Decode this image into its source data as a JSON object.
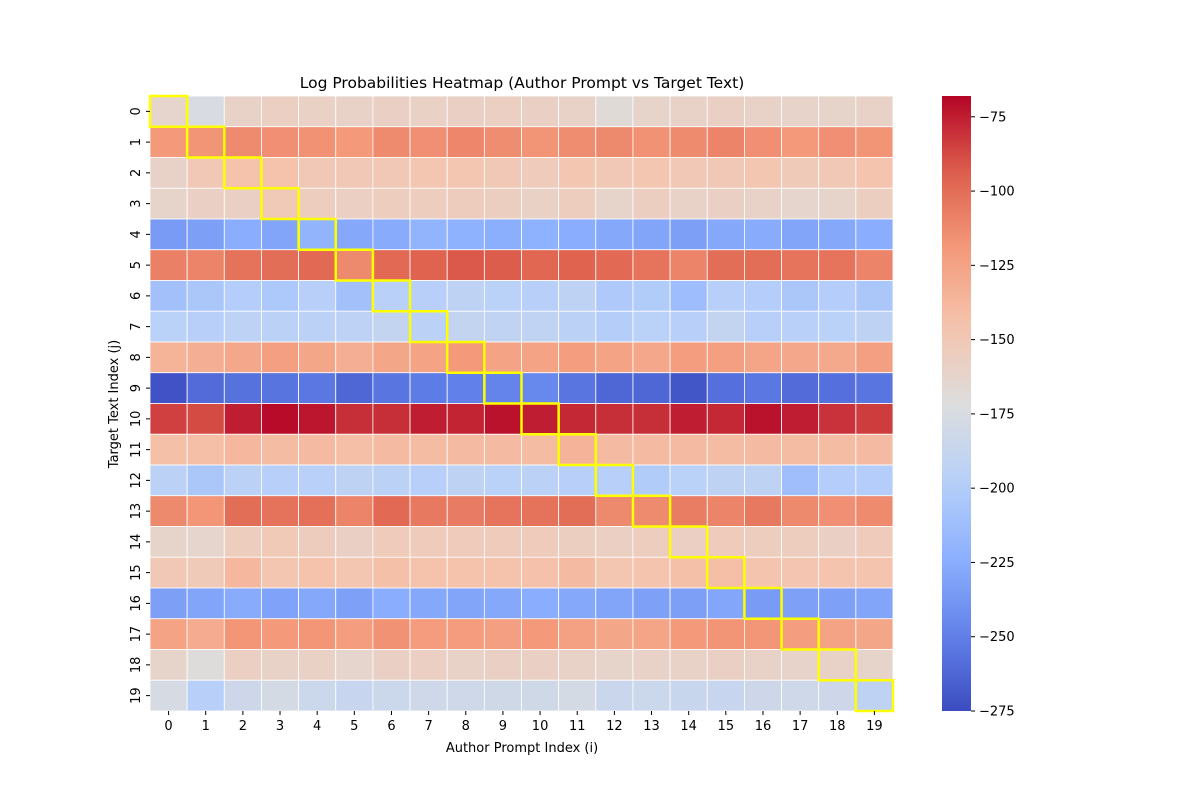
{
  "chart_data": {
    "type": "heatmap",
    "title": "Log Probabilities Heatmap (Author Prompt vs Target Text)",
    "xlabel": "Author Prompt Index (i)",
    "ylabel": "Target Text Index (j)",
    "x_tick_labels": [
      "0",
      "1",
      "2",
      "3",
      "4",
      "5",
      "6",
      "7",
      "8",
      "9",
      "10",
      "11",
      "12",
      "13",
      "14",
      "15",
      "16",
      "17",
      "18",
      "19"
    ],
    "y_tick_labels": [
      "0",
      "1",
      "2",
      "3",
      "4",
      "5",
      "6",
      "7",
      "8",
      "9",
      "10",
      "11",
      "12",
      "13",
      "14",
      "15",
      "16",
      "17",
      "18",
      "19"
    ],
    "colormap": "coolwarm",
    "colorbar": {
      "vmin": -275,
      "vmax": -68,
      "ticks": [
        -75,
        -100,
        -125,
        -150,
        -175,
        -200,
        -225,
        -250,
        -275
      ],
      "tick_labels": [
        "−75",
        "−100",
        "−125",
        "−150",
        "−175",
        "−200",
        "−225",
        "−250",
        "−275"
      ]
    },
    "highlight": {
      "description_color": "#ffff00",
      "cells": "diagonal i=j"
    },
    "values": [
      [
        -163,
        -175,
        -160,
        -157,
        -159,
        -160,
        -158,
        -159,
        -158,
        -157,
        -158,
        -160,
        -168,
        -162,
        -160,
        -158,
        -160,
        -161,
        -162,
        -160
      ],
      [
        -120,
        -117,
        -113,
        -115,
        -116,
        -120,
        -113,
        -115,
        -111,
        -114,
        -117,
        -114,
        -112,
        -116,
        -113,
        -110,
        -115,
        -120,
        -115,
        -117
      ],
      [
        -160,
        -150,
        -145,
        -145,
        -150,
        -150,
        -150,
        -148,
        -148,
        -150,
        -153,
        -148,
        -150,
        -148,
        -150,
        -150,
        -148,
        -152,
        -150,
        -146
      ],
      [
        -162,
        -158,
        -158,
        -151,
        -155,
        -157,
        -155,
        -155,
        -154,
        -156,
        -159,
        -155,
        -162,
        -156,
        -160,
        -158,
        -160,
        -163,
        -162,
        -156
      ],
      [
        -235,
        -233,
        -225,
        -230,
        -220,
        -228,
        -226,
        -220,
        -222,
        -224,
        -222,
        -225,
        -228,
        -230,
        -233,
        -228,
        -226,
        -230,
        -228,
        -225
      ],
      [
        -108,
        -110,
        -102,
        -100,
        -98,
        -112,
        -98,
        -95,
        -92,
        -93,
        -97,
        -95,
        -98,
        -103,
        -110,
        -100,
        -100,
        -103,
        -103,
        -110
      ],
      [
        -210,
        -205,
        -200,
        -204,
        -198,
        -210,
        -197,
        -198,
        -193,
        -196,
        -198,
        -193,
        -203,
        -201,
        -213,
        -198,
        -200,
        -205,
        -200,
        -205
      ],
      [
        -196,
        -198,
        -194,
        -195,
        -195,
        -194,
        -190,
        -195,
        -190,
        -192,
        -192,
        -195,
        -199,
        -196,
        -198,
        -190,
        -198,
        -197,
        -196,
        -193
      ],
      [
        -135,
        -132,
        -128,
        -123,
        -127,
        -132,
        -127,
        -125,
        -120,
        -125,
        -125,
        -122,
        -125,
        -128,
        -122,
        -123,
        -126,
        -128,
        -129,
        -123
      ],
      [
        -272,
        -260,
        -257,
        -256,
        -254,
        -262,
        -255,
        -252,
        -250,
        -248,
        -246,
        -255,
        -262,
        -262,
        -270,
        -258,
        -254,
        -260,
        -258,
        -255
      ],
      [
        -85,
        -88,
        -75,
        -70,
        -73,
        -80,
        -80,
        -75,
        -77,
        -72,
        -75,
        -78,
        -80,
        -80,
        -75,
        -78,
        -72,
        -75,
        -81,
        -84
      ],
      [
        -143,
        -142,
        -138,
        -141,
        -140,
        -142,
        -140,
        -141,
        -140,
        -140,
        -141,
        -136,
        -140,
        -140,
        -140,
        -141,
        -140,
        -141,
        -141,
        -140
      ],
      [
        -195,
        -205,
        -195,
        -198,
        -197,
        -193,
        -195,
        -198,
        -193,
        -196,
        -195,
        -198,
        -198,
        -201,
        -196,
        -193,
        -193,
        -212,
        -200,
        -200
      ],
      [
        -112,
        -118,
        -100,
        -102,
        -101,
        -110,
        -98,
        -105,
        -106,
        -103,
        -102,
        -100,
        -112,
        -113,
        -107,
        -110,
        -105,
        -112,
        -115,
        -113
      ],
      [
        -162,
        -163,
        -155,
        -151,
        -154,
        -158,
        -153,
        -153,
        -153,
        -153,
        -153,
        -156,
        -157,
        -155,
        -157,
        -153,
        -155,
        -155,
        -158,
        -153
      ],
      [
        -150,
        -152,
        -138,
        -148,
        -145,
        -148,
        -143,
        -145,
        -145,
        -145,
        -144,
        -140,
        -148,
        -146,
        -143,
        -142,
        -146,
        -147,
        -146,
        -146
      ],
      [
        -233,
        -230,
        -226,
        -231,
        -228,
        -232,
        -225,
        -228,
        -230,
        -228,
        -225,
        -228,
        -230,
        -232,
        -233,
        -229,
        -235,
        -232,
        -232,
        -230
      ],
      [
        -125,
        -130,
        -118,
        -120,
        -118,
        -122,
        -116,
        -121,
        -121,
        -123,
        -120,
        -124,
        -127,
        -126,
        -120,
        -117,
        -118,
        -122,
        -125,
        -127
      ],
      [
        -162,
        -170,
        -157,
        -160,
        -159,
        -163,
        -158,
        -157,
        -160,
        -158,
        -158,
        -160,
        -162,
        -160,
        -160,
        -158,
        -160,
        -161,
        -160,
        -162
      ],
      [
        -177,
        -198,
        -183,
        -178,
        -184,
        -187,
        -184,
        -182,
        -182,
        -181,
        -181,
        -178,
        -185,
        -184,
        -186,
        -187,
        -183,
        -182,
        -183,
        -193
      ]
    ]
  }
}
